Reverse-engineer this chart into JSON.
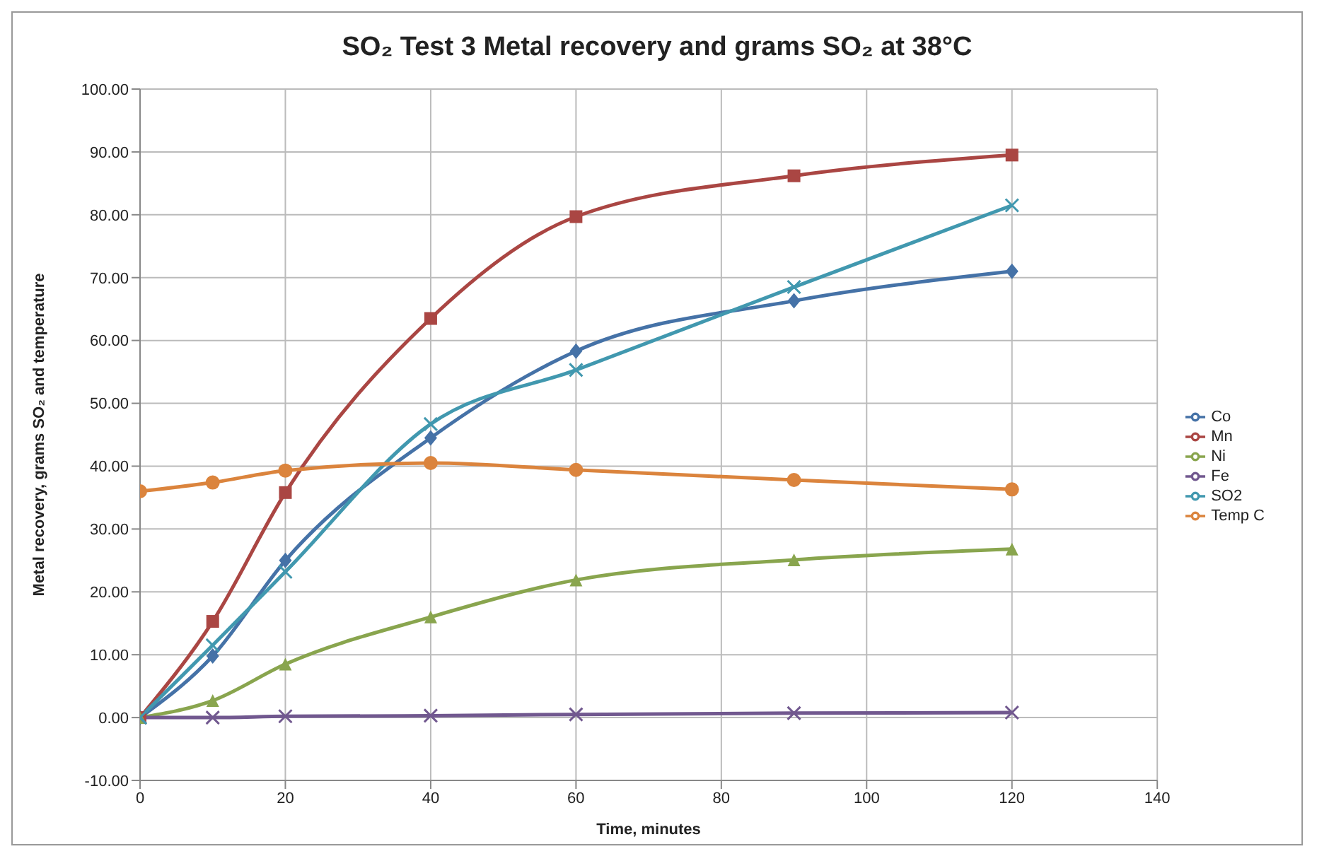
{
  "chart_data": {
    "type": "line",
    "title": "SO₂ Test 3 Metal recovery and grams SO₂ at 38°C",
    "xlabel": "Time, minutes",
    "ylabel": "Metal recovery, grams SO₂ and temperature",
    "x": [
      0,
      10,
      20,
      40,
      60,
      90,
      120
    ],
    "series": [
      {
        "name": "Co",
        "color": "#4572a7",
        "marker": "diamond",
        "values": [
          0,
          9.8,
          25,
          44.5,
          58.3,
          66.3,
          71
        ]
      },
      {
        "name": "Mn",
        "color": "#aa4643",
        "marker": "square",
        "values": [
          0,
          15.3,
          35.8,
          63.5,
          79.7,
          86.2,
          89.5
        ]
      },
      {
        "name": "Ni",
        "color": "#89a54e",
        "marker": "triangle",
        "values": [
          0,
          2.7,
          8.5,
          16,
          21.9,
          25.1,
          26.8
        ]
      },
      {
        "name": "Fe",
        "color": "#71588f",
        "marker": "cross",
        "values": [
          0,
          0,
          0.2,
          0.3,
          0.5,
          0.7,
          0.8
        ]
      },
      {
        "name": "SO2",
        "color": "#4198af",
        "marker": "cross",
        "values": [
          0,
          11.5,
          23.2,
          46.7,
          55.3,
          68.5,
          81.5
        ]
      },
      {
        "name": "Temp C",
        "color": "#db843d",
        "marker": "circle",
        "values": [
          36,
          37.4,
          39.3,
          40.5,
          39.4,
          37.8,
          36.3
        ]
      }
    ],
    "xlim": [
      0,
      140
    ],
    "xticks": [
      0,
      20,
      40,
      60,
      80,
      100,
      120,
      140
    ],
    "ylim": [
      -10,
      100
    ],
    "yticks": [
      {
        "value": -10,
        "label": "-10.00"
      },
      {
        "value": 0,
        "label": "0.00"
      },
      {
        "value": 10,
        "label": "10.00"
      },
      {
        "value": 20,
        "label": "20.00"
      },
      {
        "value": 30,
        "label": "30.00"
      },
      {
        "value": 40,
        "label": "40.00"
      },
      {
        "value": 50,
        "label": "50.00"
      },
      {
        "value": 60,
        "label": "60.00"
      },
      {
        "value": 70,
        "label": "70.00"
      },
      {
        "value": 80,
        "label": "80.00"
      },
      {
        "value": 90,
        "label": "90.00"
      },
      {
        "value": 100,
        "label": "100.00"
      }
    ],
    "grid": true,
    "legend": "right",
    "line_style": "solid"
  }
}
